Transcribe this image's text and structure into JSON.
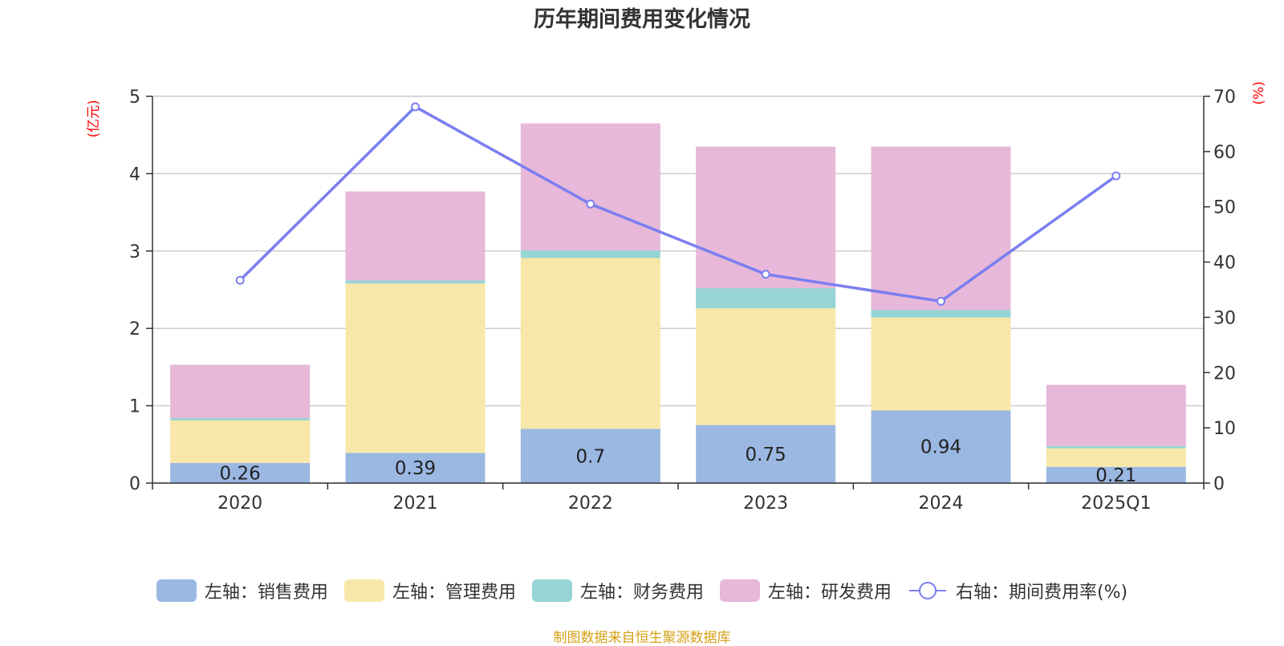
{
  "chart_data": {
    "type": "bar",
    "title": "历年期间费用变化情况",
    "categories": [
      "2020",
      "2021",
      "2022",
      "2023",
      "2024",
      "2025Q1"
    ],
    "series": [
      {
        "name": "左轴：销售费用",
        "axis": "left",
        "kind": "bar",
        "color": "#9bb8e3",
        "values": [
          0.26,
          0.39,
          0.7,
          0.75,
          0.94,
          0.21
        ]
      },
      {
        "name": "左轴：管理费用",
        "axis": "left",
        "kind": "bar",
        "color": "#f7e7a8",
        "values": [
          0.55,
          2.19,
          2.21,
          1.51,
          1.2,
          0.24
        ]
      },
      {
        "name": "左轴：财务费用",
        "axis": "left",
        "kind": "bar",
        "color": "#97d4d4",
        "values": [
          0.03,
          0.04,
          0.1,
          0.26,
          0.1,
          0.03
        ]
      },
      {
        "name": "左轴：研发费用",
        "axis": "left",
        "kind": "bar",
        "color": "#e7b8d9",
        "values": [
          0.69,
          1.15,
          1.64,
          1.83,
          2.11,
          0.79
        ]
      },
      {
        "name": "右轴：期间费用率(%)",
        "axis": "right",
        "kind": "line",
        "color": "#7b7ef0",
        "values": [
          36.7,
          68.1,
          50.5,
          37.8,
          32.9,
          55.6
        ]
      }
    ],
    "bar_labels": [
      "0.26",
      "0.39",
      "0.7",
      "0.75",
      "0.94",
      "0.21"
    ],
    "left_axis": {
      "label": "(亿元)",
      "min": 0,
      "max": 5,
      "ticks": [
        "0",
        "1",
        "2",
        "3",
        "4",
        "5"
      ]
    },
    "right_axis": {
      "label": "(%)",
      "min": 0,
      "max": 70,
      "ticks": [
        "0",
        "10",
        "20",
        "30",
        "40",
        "50",
        "60",
        "70"
      ]
    },
    "grid": true,
    "legend_position": "bottom"
  },
  "footer": "制图数据来自恒生聚源数据库"
}
